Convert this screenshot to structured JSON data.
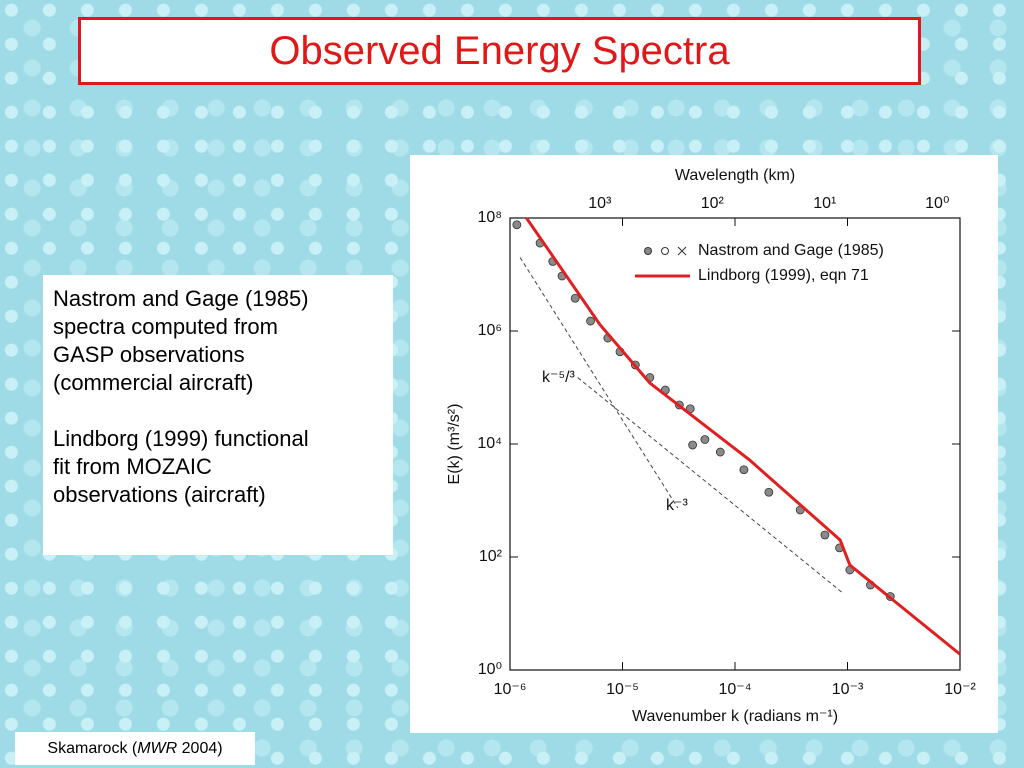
{
  "header": {
    "title": "Observed Energy Spectra"
  },
  "text_box": {
    "paragraphs": [
      [
        "Nastrom and Gage (1985)",
        "spectra computed from",
        "GASP observations",
        "(commercial aircraft)"
      ],
      [
        "Lindborg (1999) functional",
        "fit from MOZAIC",
        "observations (aircraft)"
      ]
    ]
  },
  "footnote": {
    "author": "Skamarock (",
    "journal": "MWR",
    "year": " 2004)"
  },
  "chart_data": {
    "type": "scatter",
    "xscale": "log",
    "yscale": "log",
    "x2scale": "log",
    "xlabel": "Wavenumber  k (radians m⁻¹)",
    "ylabel": "E(k) (m³/s²)",
    "x2label": "Wavelength  (km)",
    "xlim": [
      1e-06,
      0.01
    ],
    "xticks": [
      {
        "value": 1e-06,
        "label": "10⁻⁶"
      },
      {
        "value": 1e-05,
        "label": "10⁻⁵"
      },
      {
        "value": 0.0001,
        "label": "10⁻⁴"
      },
      {
        "value": 0.001,
        "label": "10⁻³"
      },
      {
        "value": 0.01,
        "label": "10⁻²"
      }
    ],
    "ylim": [
      1,
      100000000.0
    ],
    "yticks": [
      {
        "value": 1,
        "label": "10⁰"
      },
      {
        "value": 100,
        "label": "10²"
      },
      {
        "value": 10000,
        "label": "10⁴"
      },
      {
        "value": 1000000,
        "label": "10⁶"
      },
      {
        "value": 100000000,
        "label": "10⁸"
      }
    ],
    "x2lim": [
      6283,
      0.628
    ],
    "x2ticks": [
      {
        "value": 1000,
        "label": "10³"
      },
      {
        "value": 100,
        "label": "10²"
      },
      {
        "value": 10,
        "label": "10¹"
      },
      {
        "value": 1,
        "label": "10⁰"
      }
    ],
    "legend": "upper right",
    "series": [
      {
        "name": "Nastrom and Gage (1985)",
        "type": "scatter",
        "color": "#8a8a8a",
        "x": [
          1.15e-06,
          1.85e-06,
          2.4e-06,
          2.9e-06,
          3.8e-06,
          5.2e-06,
          7.4e-06,
          9.5e-06,
          1.3e-05,
          1.75e-05,
          2.4e-05,
          3.2e-05,
          4e-05,
          4.2e-05,
          5.4e-05,
          7.4e-05,
          0.00012,
          0.0002,
          0.00038,
          0.00063,
          0.00085,
          0.00105,
          0.0016,
          0.0024
        ],
        "values": [
          76000000.0,
          36000000.0,
          17000000.0,
          9400000.0,
          3800000.0,
          1500000.0,
          750000.0,
          430000.0,
          250000.0,
          150000.0,
          90000.0,
          49000.0,
          42000.0,
          9600,
          12000,
          7200,
          3500,
          1400,
          680,
          245,
          145,
          59,
          32,
          20
        ]
      },
      {
        "name": "Lindborg (1999),  eqn 71",
        "type": "line",
        "color": "#e02020",
        "x": [
          1.4e-06,
          6.3e-06,
          1.75e-05,
          0.000135,
          0.00086,
          0.00105,
          0.01
        ],
        "values": [
          100000000.0,
          1300000.0,
          120000.0,
          5200,
          200,
          72,
          1.9
        ]
      }
    ],
    "reference_lines": [
      {
        "label": "k⁻⁵/³",
        "x": [
          4e-06,
          0.00091
        ],
        "values": [
          150000.0,
          23
        ]
      },
      {
        "label": "k⁻³",
        "x": [
          1.23e-06,
          3.1e-05
        ],
        "values": [
          20000000.0,
          740
        ]
      }
    ]
  }
}
